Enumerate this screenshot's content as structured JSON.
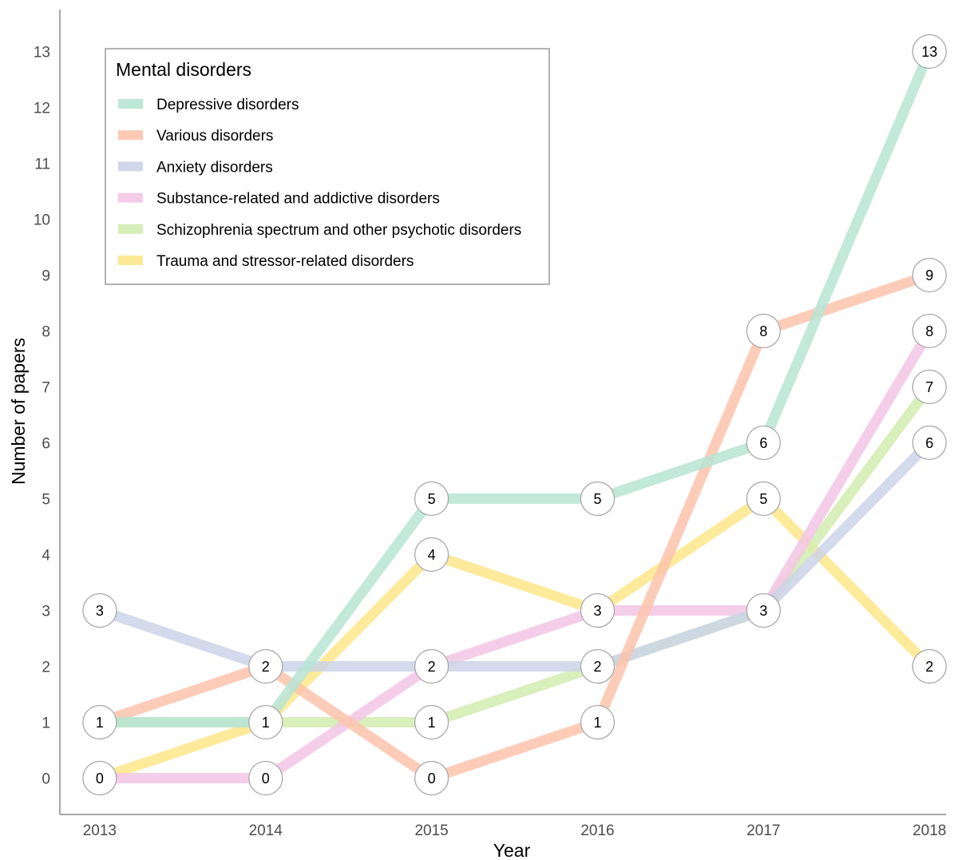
{
  "chart_data": {
    "type": "line",
    "xlabel": "Year",
    "ylabel": "Number of papers",
    "x": [
      2013,
      2014,
      2015,
      2016,
      2017,
      2018
    ],
    "xlim": [
      2012.76,
      2018.1
    ],
    "ylim": [
      -0.65,
      13.75
    ],
    "yticks": [
      0,
      1,
      2,
      3,
      4,
      5,
      6,
      7,
      8,
      9,
      10,
      11,
      12,
      13
    ],
    "grid": false,
    "legend": {
      "title": "Mental disorders",
      "position": "top-left"
    },
    "series": [
      {
        "name": "Trauma and stressor-related disorders",
        "color": "#fde68a",
        "values": [
          0,
          1,
          4,
          3,
          5,
          2
        ]
      },
      {
        "name": "Schizophrenia spectrum and other psychotic disorders",
        "color": "#d2ecb0",
        "values": [
          1,
          1,
          1,
          2,
          3,
          7
        ]
      },
      {
        "name": "Substance-related and addictive disorders",
        "color": "#f2c6e4",
        "values": [
          0,
          0,
          2,
          3,
          3,
          8
        ]
      },
      {
        "name": "Anxiety disorders",
        "color": "#cbd3e8",
        "values": [
          3,
          2,
          2,
          2,
          3,
          6
        ]
      },
      {
        "name": "Various disorders",
        "color": "#fdc3ac",
        "values": [
          1,
          2,
          0,
          1,
          8,
          9
        ]
      },
      {
        "name": "Depressive disorders",
        "color": "#b7e4d4",
        "values": [
          1,
          1,
          5,
          5,
          6,
          13
        ]
      }
    ],
    "legend_order": [
      "Depressive disorders",
      "Various disorders",
      "Anxiety disorders",
      "Substance-related and addictive disorders",
      "Schizophrenia spectrum and other psychotic disorders",
      "Trauma and stressor-related disorders"
    ]
  }
}
